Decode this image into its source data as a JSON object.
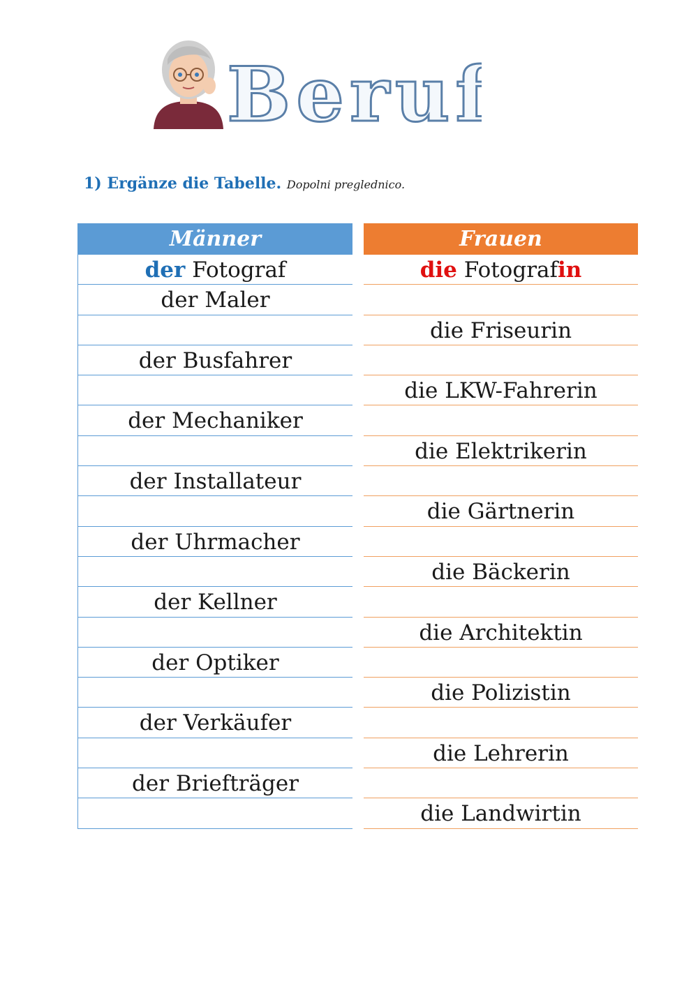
{
  "title": "Berufe",
  "task": {
    "label": "1) Ergänze die Tabelle.",
    "translation": "Dopolni preglednico."
  },
  "table": {
    "men_header": "Männer",
    "women_header": "Frauen",
    "example": {
      "men_article": "der",
      "men_noun": "Fotograf",
      "women_article": "die",
      "women_stem": "Fotograf",
      "women_suffix": "in"
    },
    "men_rows": [
      "der Maler",
      "",
      "der Busfahrer",
      "",
      "der Mechaniker",
      "",
      "der Installateur",
      "",
      "der Uhrmacher",
      "",
      "der Kellner",
      "",
      "der Optiker",
      "",
      "der Verkäufer",
      "",
      "der Briefträger",
      ""
    ],
    "women_rows": [
      "",
      "die Friseurin",
      "",
      "die LKW-Fahrerin",
      "",
      "die Elektrikerin",
      "",
      "die Gärtnerin",
      "",
      "die Bäckerin",
      "",
      "die Architektin",
      "",
      "die Polizistin",
      "",
      "die Lehrerin",
      "",
      "die Landwirtin"
    ]
  },
  "colors": {
    "men": "#5b9bd5",
    "women": "#ed7d31",
    "accent_blue": "#1f6fb5",
    "accent_red": "#e01010"
  }
}
